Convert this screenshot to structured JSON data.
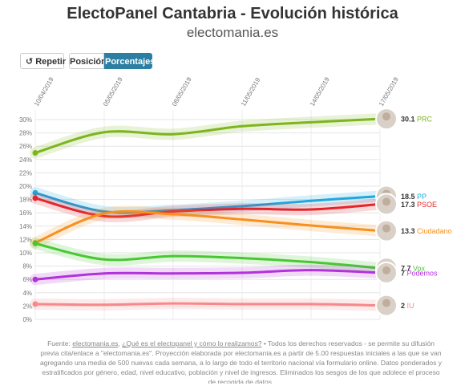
{
  "header": {
    "title": "ElectoPanel Cantabria - Evolución histórica",
    "subtitle": "electomania.es"
  },
  "controls": {
    "repeat_label": "Repetir",
    "position_label": "Posición",
    "percent_label": "Porcentajes"
  },
  "footer": {
    "source_prefix": "Fuente: ",
    "link1": "electomania.es",
    "link2": "¿Qué es el electopanel y cómo lo realizamos?",
    "text": " • Todos los derechos reservados - se permite su difusión previa cita/enlace a \"electomania.es\". Proyección elaborada por electomania.es a partir de 5.00 respuestas iniciales a las que se van agregando una media de 500 nuevas cada semana, a lo largo de todo el territorio nacional vía formulario online. Datos ponderados y estratificados por género, edad, nivel educativo, población y nivel de ingresos. Eliminados los sesgos de los que adolece el proceso de recogida de datos."
  },
  "chart_data": {
    "type": "line",
    "x": [
      "10/04/2019",
      "05/05/2019",
      "08/05/2019",
      "11/05/2019",
      "14/05/2019",
      "17/05/2019"
    ],
    "ylim": [
      0,
      30
    ],
    "yticks": [
      "0%",
      "2%",
      "4%",
      "6%",
      "8%",
      "10%",
      "12%",
      "14%",
      "16%",
      "18%",
      "20%",
      "22%",
      "24%",
      "26%",
      "28%",
      "30%"
    ],
    "grid": true,
    "series": [
      {
        "name": "PRC",
        "value_label": "30.1",
        "color": "#7db51c",
        "values": [
          25.0,
          28.1,
          27.8,
          29.0,
          29.6,
          30.1
        ]
      },
      {
        "name": "PP",
        "value_label": "18.5",
        "color": "#1fa7e0",
        "values": [
          19.0,
          16.2,
          16.4,
          17.0,
          17.8,
          18.5
        ]
      },
      {
        "name": "PSOE",
        "value_label": "17.3",
        "color": "#e3262c",
        "values": [
          18.2,
          15.5,
          16.2,
          16.6,
          16.5,
          17.3
        ]
      },
      {
        "name": "Ciudadano",
        "value_label": "13.3",
        "color": "#f7901e",
        "values": [
          11.5,
          15.9,
          15.8,
          15.0,
          14.1,
          13.3
        ]
      },
      {
        "name": "Vox",
        "value_label": "7.7",
        "color": "#49c733",
        "values": [
          11.4,
          9.0,
          9.5,
          9.2,
          8.6,
          7.7
        ]
      },
      {
        "name": "Podemos",
        "value_label": "7",
        "color": "#b133d9",
        "values": [
          6.0,
          6.9,
          6.9,
          7.0,
          7.4,
          7.0
        ]
      },
      {
        "name": "IU",
        "value_label": "2",
        "color": "#f58a8a",
        "values": [
          2.3,
          2.2,
          2.4,
          2.3,
          2.3,
          2.1
        ]
      }
    ]
  }
}
